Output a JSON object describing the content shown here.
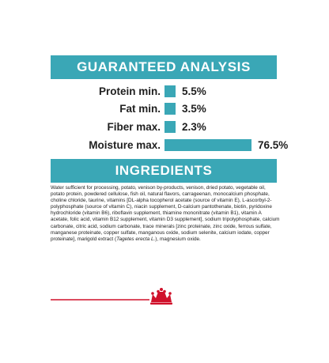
{
  "guaranteed_analysis": {
    "title": "GUARANTEED ANALYSIS",
    "rows": [
      {
        "label": "Protein min.",
        "value": "5.5%",
        "percent": 5.5
      },
      {
        "label": "Fat min.",
        "value": "3.5%",
        "percent": 3.5
      },
      {
        "label": "Fiber max.",
        "value": "2.3%",
        "percent": 2.3
      },
      {
        "label": "Moisture max.",
        "value": "76.5%",
        "percent": 76.5
      }
    ]
  },
  "ingredients": {
    "title": "INGREDIENTS",
    "text_before_italic": "Water sufficient for processing, potato, venison by-products, venison, dried potato, vegetable oil, potato protein, powdered cellulose, fish oil, natural flavors, carrageenan, monocalcium phosphate, choline chloride, taurine, vitamins [DL-alpha tocopherol acetate (source of vitamin E), L-ascorbyl-2-polyphosphate (source of vitamin C), niacin supplement, D-calcium pantothenate, biotin, pyridoxine hydrochloride (vitamin B6), riboflavin supplement, thiamine mononitrate (vitamin B1), vitamin A acetate, folic acid, vitamin B12 supplement, vitamin D3 supplement], sodium tripolyphosphate, calcium carbonate, citric acid, sodium carbonate, trace minerals [zinc proteinate, zinc oxide, ferrous sulfate, manganese proteinate, copper sulfate, manganous oxide, sodium selenite, calcium iodate, copper proteinate], marigold extract (",
    "italic": "Tagetes erecta L.",
    "text_after_italic": "), magnesium oxide."
  },
  "colors": {
    "accent": "#3aa7b6",
    "brand_red": "#d0112b"
  },
  "icons": {
    "brand_mark": "royal-crown-logo-icon"
  }
}
